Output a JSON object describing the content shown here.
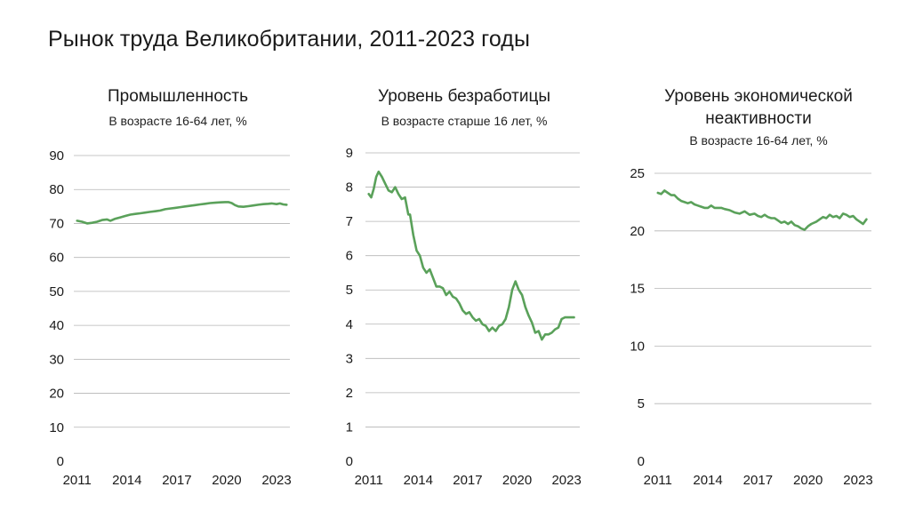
{
  "title": "Рынок труда Великобритании, 2011-2023 годы",
  "colors": {
    "line": "#5aa15a",
    "grid": "#b5b5b5",
    "text": "#1a1a1a"
  },
  "chart_data": [
    {
      "type": "line",
      "title": "Промышленность",
      "subtitle": "В возрасте 16-64 лет, %",
      "ylim": [
        0,
        90
      ],
      "yticks": [
        "0",
        "10",
        "20",
        "30",
        "40",
        "50",
        "60",
        "70",
        "80",
        "90"
      ],
      "xlim": [
        2010.8,
        2023.8
      ],
      "xticks": [
        "2011",
        "2014",
        "2017",
        "2020",
        "2023"
      ],
      "grid": true,
      "series": [
        {
          "x": [
            2011.0,
            2011.3,
            2011.6,
            2011.9,
            2012.2,
            2012.5,
            2012.8,
            2013.0,
            2013.3,
            2013.6,
            2013.9,
            2014.2,
            2014.5,
            2014.8,
            2015.1,
            2015.4,
            2015.7,
            2016.0,
            2016.3,
            2016.6,
            2016.9,
            2017.2,
            2017.5,
            2017.8,
            2018.1,
            2018.4,
            2018.7,
            2019.0,
            2019.3,
            2019.6,
            2019.9,
            2020.1,
            2020.3,
            2020.5,
            2020.7,
            2021.0,
            2021.3,
            2021.6,
            2021.9,
            2022.2,
            2022.5,
            2022.7,
            2023.0,
            2023.2,
            2023.4,
            2023.6
          ],
          "y": [
            70.8,
            70.5,
            70.0,
            70.2,
            70.5,
            71.0,
            71.2,
            70.8,
            71.4,
            71.8,
            72.2,
            72.6,
            72.8,
            73.0,
            73.2,
            73.4,
            73.6,
            73.8,
            74.2,
            74.4,
            74.6,
            74.8,
            75.0,
            75.2,
            75.4,
            75.6,
            75.8,
            76.0,
            76.1,
            76.2,
            76.3,
            76.3,
            76.0,
            75.4,
            75.0,
            74.9,
            75.1,
            75.3,
            75.5,
            75.7,
            75.8,
            75.9,
            75.7,
            75.9,
            75.6,
            75.5
          ]
        }
      ]
    },
    {
      "type": "line",
      "title": "Уровень безработицы",
      "subtitle": "В возрасте старше 16 лет, %",
      "ylim": [
        0,
        9
      ],
      "yticks": [
        "0",
        "1",
        "2",
        "3",
        "4",
        "5",
        "6",
        "7",
        "8",
        "9"
      ],
      "xlim": [
        2010.8,
        2023.8
      ],
      "xticks": [
        "2011",
        "2014",
        "2017",
        "2020",
        "2023"
      ],
      "grid": true,
      "series": [
        {
          "x": [
            2011.0,
            2011.15,
            2011.3,
            2011.45,
            2011.6,
            2011.8,
            2012.0,
            2012.2,
            2012.4,
            2012.6,
            2012.8,
            2013.0,
            2013.2,
            2013.4,
            2013.5,
            2013.7,
            2013.9,
            2014.1,
            2014.3,
            2014.5,
            2014.7,
            2014.9,
            2015.1,
            2015.3,
            2015.5,
            2015.7,
            2015.9,
            2016.1,
            2016.3,
            2016.5,
            2016.7,
            2016.9,
            2017.1,
            2017.3,
            2017.5,
            2017.7,
            2017.9,
            2018.1,
            2018.3,
            2018.5,
            2018.7,
            2018.9,
            2019.1,
            2019.3,
            2019.5,
            2019.7,
            2019.9,
            2020.1,
            2020.3,
            2020.5,
            2020.7,
            2020.9,
            2021.1,
            2021.3,
            2021.5,
            2021.7,
            2021.9,
            2022.1,
            2022.3,
            2022.5,
            2022.7,
            2022.9,
            2023.1,
            2023.3,
            2023.45
          ],
          "y": [
            7.8,
            7.7,
            7.95,
            8.3,
            8.45,
            8.3,
            8.1,
            7.9,
            7.85,
            8.0,
            7.8,
            7.65,
            7.7,
            7.2,
            7.2,
            6.6,
            6.15,
            6.0,
            5.65,
            5.5,
            5.6,
            5.35,
            5.1,
            5.1,
            5.05,
            4.85,
            4.95,
            4.8,
            4.75,
            4.6,
            4.4,
            4.3,
            4.35,
            4.2,
            4.1,
            4.15,
            4.0,
            3.95,
            3.8,
            3.9,
            3.8,
            3.95,
            4.0,
            4.15,
            4.5,
            5.0,
            5.25,
            5.0,
            4.85,
            4.5,
            4.25,
            4.05,
            3.75,
            3.8,
            3.55,
            3.7,
            3.7,
            3.75,
            3.85,
            3.9,
            4.15,
            4.2,
            4.2,
            4.2,
            4.2
          ]
        }
      ]
    },
    {
      "type": "line",
      "title": "Уровень экономической неактивности",
      "subtitle": "В возрасте 16-64 лет, %",
      "ylim": [
        0,
        25
      ],
      "yticks": [
        "0",
        "5",
        "10",
        "15",
        "20",
        "25"
      ],
      "xlim": [
        2010.8,
        2023.8
      ],
      "xticks": [
        "2011",
        "2014",
        "2017",
        "2020",
        "2023"
      ],
      "grid": true,
      "series": [
        {
          "x": [
            2011.0,
            2011.2,
            2011.4,
            2011.6,
            2011.8,
            2012.0,
            2012.2,
            2012.4,
            2012.6,
            2012.8,
            2013.0,
            2013.2,
            2013.4,
            2013.6,
            2013.8,
            2014.0,
            2014.2,
            2014.4,
            2014.6,
            2014.8,
            2015.0,
            2015.3,
            2015.6,
            2015.9,
            2016.2,
            2016.5,
            2016.8,
            2017.0,
            2017.2,
            2017.4,
            2017.6,
            2017.8,
            2018.0,
            2018.2,
            2018.4,
            2018.6,
            2018.8,
            2019.0,
            2019.2,
            2019.4,
            2019.6,
            2019.8,
            2020.0,
            2020.2,
            2020.5,
            2020.7,
            2020.9,
            2021.1,
            2021.3,
            2021.5,
            2021.7,
            2021.9,
            2022.1,
            2022.3,
            2022.5,
            2022.7,
            2022.9,
            2023.1,
            2023.3,
            2023.5
          ],
          "y": [
            23.3,
            23.2,
            23.5,
            23.3,
            23.1,
            23.1,
            22.8,
            22.6,
            22.5,
            22.4,
            22.5,
            22.3,
            22.2,
            22.1,
            22.0,
            22.0,
            22.2,
            22.0,
            22.0,
            22.0,
            21.9,
            21.8,
            21.6,
            21.5,
            21.7,
            21.4,
            21.5,
            21.3,
            21.2,
            21.4,
            21.2,
            21.1,
            21.1,
            20.9,
            20.7,
            20.8,
            20.6,
            20.8,
            20.5,
            20.4,
            20.2,
            20.1,
            20.4,
            20.6,
            20.8,
            21.0,
            21.2,
            21.1,
            21.4,
            21.2,
            21.3,
            21.1,
            21.5,
            21.4,
            21.2,
            21.3,
            21.0,
            20.8,
            20.6,
            21.0
          ]
        }
      ]
    }
  ]
}
